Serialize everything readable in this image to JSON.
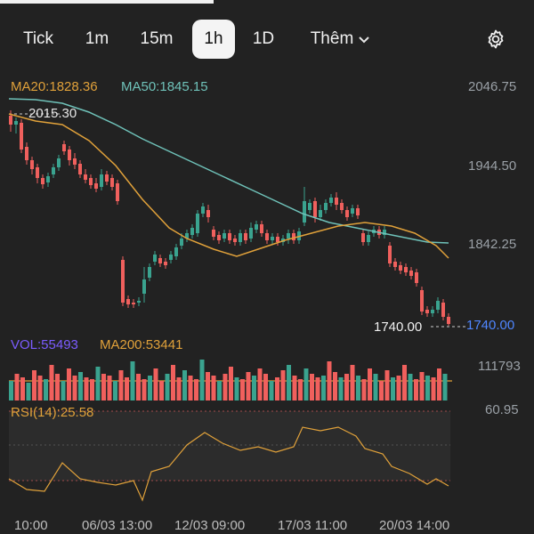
{
  "toolbar": {
    "tabs": [
      {
        "label": "Tick"
      },
      {
        "label": "1m"
      },
      {
        "label": "15m"
      },
      {
        "label": "1h"
      },
      {
        "label": "1D"
      },
      {
        "label": "Thêm"
      }
    ],
    "active_tab": "1h",
    "settings_icon": "gear-icon",
    "more_icon": "chevron-down-icon"
  },
  "main_chart": {
    "ma20_label": "MA20:1828.36",
    "ma50_label": "MA50:1845.15",
    "high_marker": "2015.30",
    "last_price_label": "1740.00",
    "current_price_tag": "1740.00",
    "price_ticks": [
      "2046.75",
      "1944.50",
      "1842.25"
    ]
  },
  "volume_panel": {
    "vol_label": "VOL:55493",
    "ma200_label": "MA200:53441",
    "max_tick": "111793"
  },
  "rsi_panel": {
    "rsi_label": "RSI(14):25.58",
    "top_tick": "60.95"
  },
  "time_axis": [
    "10:00",
    "06/03 13:00",
    "12/03 09:00",
    "17/03 11:00",
    "20/03 14:00"
  ],
  "colors": {
    "up": "#3aa38f",
    "down": "#f0605d",
    "ma20": "#e0a13a",
    "ma50": "#6fc2b9",
    "vol_label": "#7b5cff",
    "current_price": "#4f86ff",
    "background": "#222222"
  }
}
